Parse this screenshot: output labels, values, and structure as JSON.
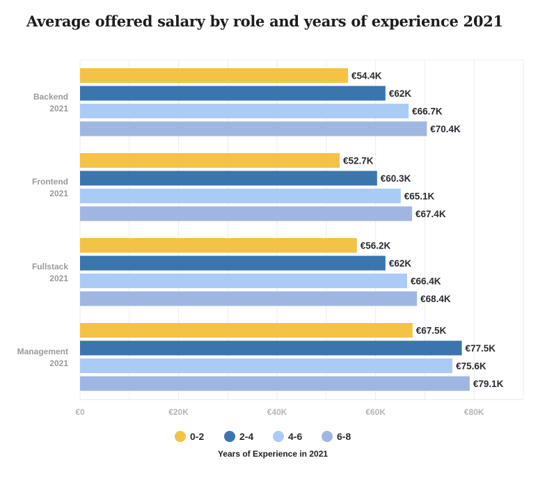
{
  "chart_data": {
    "type": "bar",
    "orientation": "horizontal",
    "title": "Average offered salary by role and years of experience 2021",
    "categories": [
      [
        "Backend",
        "2021"
      ],
      [
        "Frontend",
        "2021"
      ],
      [
        "Fullstack",
        "2021"
      ],
      [
        "Management",
        "2021"
      ]
    ],
    "series": [
      {
        "name": "0-2",
        "color": "#f4c244",
        "values": [
          54.4,
          52.7,
          56.2,
          67.5
        ],
        "labels": [
          "€54.4K",
          "€52.7K",
          "€56.2K",
          "€67.5K"
        ]
      },
      {
        "name": "2-4",
        "color": "#3a75ae",
        "values": [
          62,
          60.3,
          62,
          77.5
        ],
        "labels": [
          "€62K",
          "€60.3K",
          "€62K",
          "€77.5K"
        ]
      },
      {
        "name": "4-6",
        "color": "#aacbf5",
        "values": [
          66.7,
          65.1,
          66.4,
          75.6
        ],
        "labels": [
          "€66.7K",
          "€65.1K",
          "€66.4K",
          "€75.6K"
        ]
      },
      {
        "name": "6-8",
        "color": "#a0b6e2",
        "values": [
          70.4,
          67.4,
          68.4,
          79.1
        ],
        "labels": [
          "€70.4K",
          "€67.4K",
          "€68.4K",
          "€79.1K"
        ]
      }
    ],
    "xlim": [
      0,
      90
    ],
    "xticks": [
      0,
      20,
      40,
      60,
      80
    ],
    "xtick_labels": [
      "€0",
      "€20K",
      "€40K",
      "€60K",
      "€80K"
    ],
    "grid": true,
    "legend_position": "bottom",
    "legend_title": "Years of Experience in 2021",
    "unit": "€K"
  }
}
